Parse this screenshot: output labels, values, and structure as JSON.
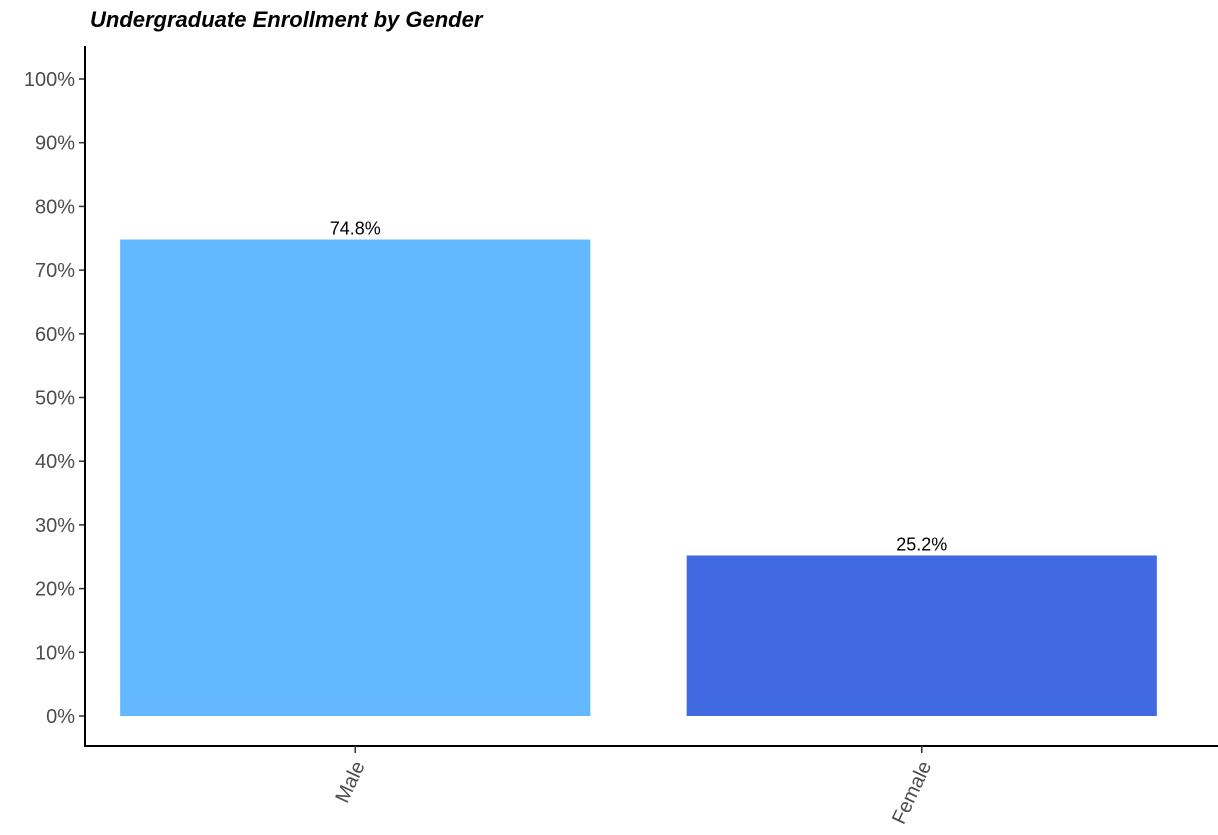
{
  "chart_data": {
    "type": "bar",
    "title": "Undergraduate Enrollment by Gender",
    "xlabel": "",
    "ylabel": "",
    "categories": [
      "Male",
      "Female"
    ],
    "values": [
      74.8,
      25.2
    ],
    "data_labels": [
      "74.8%",
      "25.2%"
    ],
    "colors": [
      "#63b8ff",
      "#4169e1"
    ],
    "ylim": [
      0,
      100
    ],
    "yticks": [
      0,
      10,
      20,
      30,
      40,
      50,
      60,
      70,
      80,
      90,
      100
    ],
    "ytick_labels": [
      "0%",
      "10%",
      "20%",
      "30%",
      "40%",
      "50%",
      "60%",
      "70%",
      "80%",
      "90%",
      "100%"
    ],
    "grid": false,
    "legend": "none"
  }
}
